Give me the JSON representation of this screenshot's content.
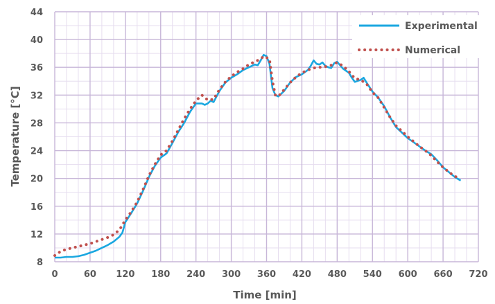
{
  "chart_data": {
    "type": "line",
    "title": "",
    "xlabel": "Time [min]",
    "ylabel": "Temperature [°C]",
    "xlim": [
      0,
      720
    ],
    "ylim": [
      8,
      44
    ],
    "xticks": [
      0,
      60,
      120,
      180,
      240,
      300,
      360,
      420,
      480,
      540,
      600,
      660,
      720
    ],
    "yticks": [
      8,
      12,
      16,
      20,
      24,
      28,
      32,
      36,
      40,
      44
    ],
    "x_minor_step": 20,
    "y_minor_step": 2,
    "grid": true,
    "legend_position": "top-right",
    "colors": {
      "grid_major": "#c7b6d8",
      "grid_minor": "#e6ddef",
      "text": "#595959"
    },
    "series": [
      {
        "name": "Experimental",
        "style": "solid",
        "color": "#1aa7e0",
        "x": [
          0,
          10,
          20,
          30,
          40,
          50,
          60,
          70,
          80,
          90,
          100,
          110,
          115,
          120,
          130,
          140,
          150,
          160,
          170,
          180,
          190,
          200,
          210,
          220,
          230,
          240,
          250,
          255,
          260,
          265,
          270,
          280,
          290,
          300,
          310,
          320,
          330,
          340,
          345,
          350,
          355,
          360,
          365,
          370,
          375,
          380,
          390,
          400,
          410,
          420,
          430,
          435,
          440,
          445,
          450,
          455,
          460,
          465,
          470,
          475,
          480,
          490,
          500,
          505,
          510,
          520,
          525,
          530,
          540,
          550,
          560,
          570,
          580,
          590,
          600,
          610,
          620,
          630,
          640,
          650,
          660,
          670,
          680,
          690
        ],
        "y": [
          8.6,
          8.6,
          8.7,
          8.7,
          8.8,
          9.0,
          9.3,
          9.6,
          10.0,
          10.4,
          10.9,
          11.6,
          12.2,
          13.7,
          15.0,
          16.4,
          18.2,
          20.2,
          21.8,
          23.0,
          23.6,
          25.1,
          26.7,
          28.0,
          29.6,
          30.8,
          30.8,
          30.6,
          30.8,
          31.2,
          31.0,
          32.6,
          33.8,
          34.5,
          35.0,
          35.6,
          36.0,
          36.4,
          36.3,
          37.0,
          37.8,
          37.6,
          36.5,
          33.0,
          32.0,
          31.8,
          32.6,
          33.8,
          34.6,
          35.0,
          35.6,
          36.2,
          37.0,
          36.5,
          36.4,
          36.7,
          36.2,
          36.0,
          35.9,
          36.6,
          36.8,
          35.8,
          35.2,
          34.5,
          33.9,
          34.2,
          34.5,
          33.8,
          32.5,
          31.6,
          30.4,
          28.8,
          27.4,
          26.6,
          25.8,
          25.2,
          24.6,
          24.0,
          23.5,
          22.6,
          21.6,
          20.9,
          20.2,
          19.7
        ]
      },
      {
        "name": "Numerical",
        "style": "dotted",
        "color": "#c0504d",
        "x": [
          0,
          10,
          20,
          30,
          40,
          50,
          60,
          70,
          80,
          90,
          100,
          110,
          120,
          130,
          140,
          150,
          160,
          170,
          180,
          190,
          200,
          210,
          220,
          230,
          240,
          250,
          260,
          270,
          280,
          290,
          300,
          310,
          320,
          330,
          340,
          350,
          355,
          360,
          365,
          370,
          375,
          380,
          390,
          400,
          410,
          420,
          430,
          440,
          450,
          460,
          470,
          480,
          490,
          500,
          510,
          520,
          530,
          540,
          550,
          560,
          570,
          580,
          590,
          600,
          610,
          620,
          630,
          640,
          650,
          660,
          670,
          680,
          690
        ],
        "y": [
          8.9,
          9.5,
          9.8,
          10.0,
          10.2,
          10.4,
          10.6,
          10.9,
          11.2,
          11.5,
          11.9,
          12.6,
          14.0,
          15.2,
          16.6,
          18.4,
          20.4,
          22.0,
          23.4,
          24.0,
          25.4,
          27.0,
          28.6,
          30.0,
          31.2,
          32.0,
          31.3,
          31.4,
          32.8,
          33.9,
          34.7,
          35.3,
          35.8,
          36.4,
          36.8,
          37.2,
          37.6,
          37.4,
          37.2,
          34.0,
          32.0,
          31.8,
          32.8,
          33.8,
          34.6,
          35.2,
          35.6,
          35.9,
          36.0,
          36.1,
          36.3,
          36.7,
          36.2,
          35.4,
          34.4,
          34.2,
          33.6,
          32.4,
          31.6,
          30.2,
          28.8,
          27.6,
          26.8,
          26.0,
          25.3,
          24.6,
          24.0,
          23.3,
          22.4,
          21.6,
          20.9,
          20.3,
          20.0
        ]
      }
    ]
  }
}
